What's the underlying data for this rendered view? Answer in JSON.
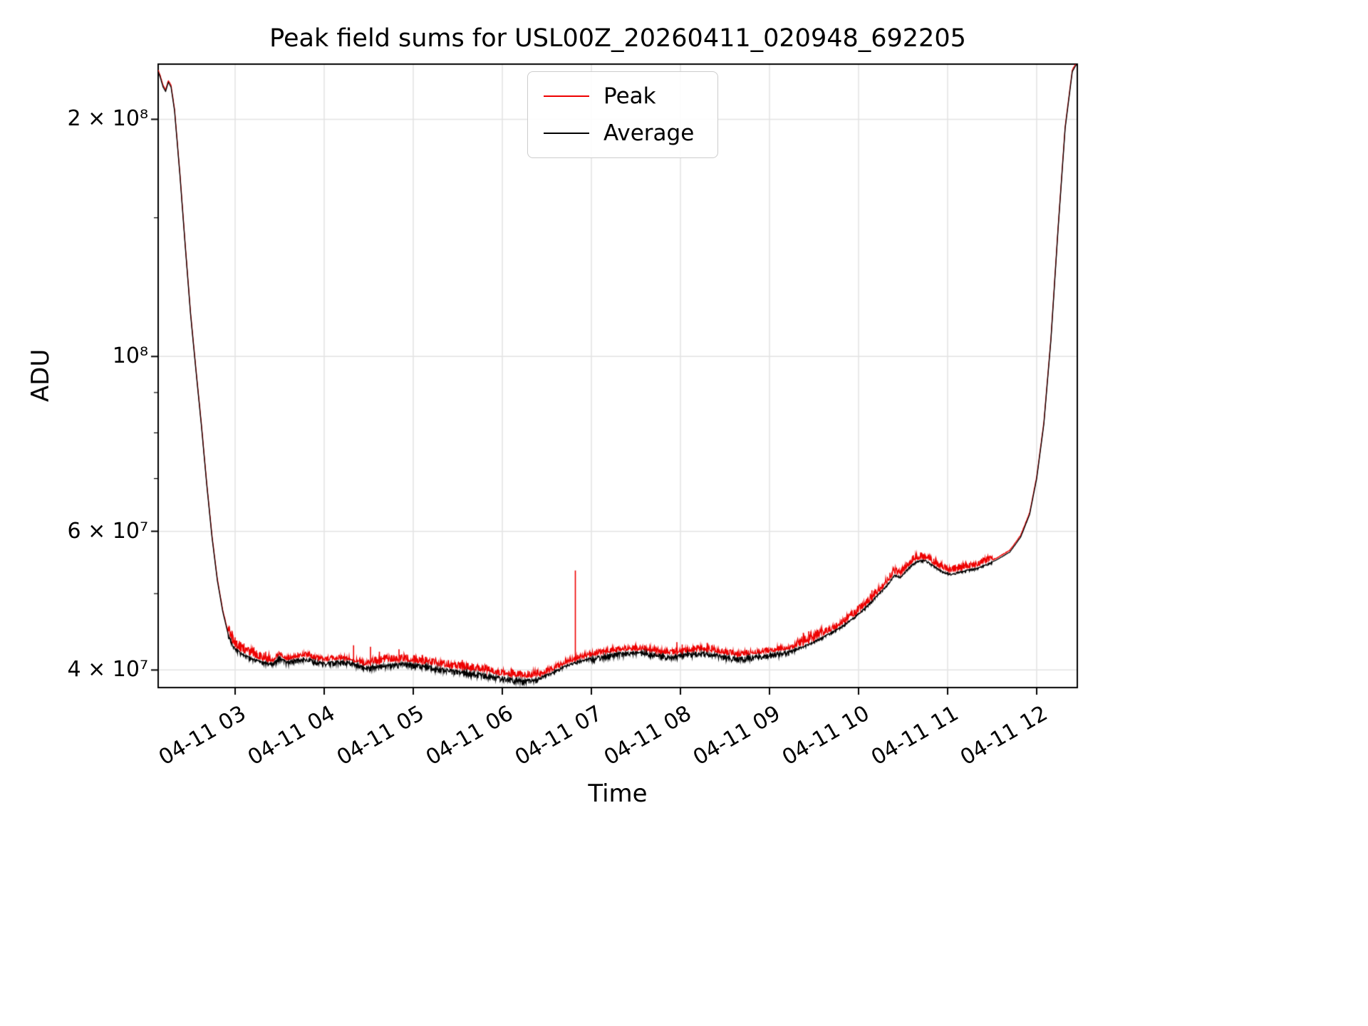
{
  "figure": {
    "title": "Peak field sums for USL00Z_20260411_020948_692205",
    "xlabel": "Time",
    "ylabel": "ADU"
  },
  "legend": {
    "position": "upper center",
    "items": [
      {
        "label": "Peak",
        "color": "#ee0000"
      },
      {
        "label": "Average",
        "color": "#000000"
      }
    ]
  },
  "chart_data": {
    "type": "line",
    "title": "Peak field sums for USL00Z_20260411_020948_692205",
    "xlabel": "Time",
    "ylabel": "ADU",
    "yscale": "log",
    "grid": true,
    "x_unit": "hours of day on 2026-04-11",
    "xlim": [
      2.136,
      12.456
    ],
    "ylim": [
      38000000.0,
      235000000.0
    ],
    "xticks": [
      3,
      4,
      5,
      6,
      7,
      8,
      9,
      10,
      11,
      12
    ],
    "xticklabels": [
      "04-11 03",
      "04-11 04",
      "04-11 05",
      "04-11 06",
      "04-11 07",
      "04-11 08",
      "04-11 09",
      "04-11 10",
      "04-11 11",
      "04-11 12"
    ],
    "yticks": [
      40000000.0,
      60000000.0,
      100000000.0,
      200000000.0
    ],
    "yticklabels": [
      "4 × 10⁷",
      "6 × 10⁷",
      "10⁸",
      "2 × 10⁸"
    ],
    "yticks_minor": [
      50000000.0,
      70000000.0,
      80000000.0,
      90000000.0,
      150000000.0
    ],
    "series": [
      {
        "name": "Peak",
        "color": "#ee0000",
        "noise": "above baseline"
      },
      {
        "name": "Average",
        "color": "#000000",
        "noise": "below baseline"
      }
    ],
    "peak_bias": 0.004,
    "baseline_keypoints": [
      [
        2.136,
        230000000.0
      ],
      [
        2.16,
        226000000.0
      ],
      [
        2.19,
        220000000.0
      ],
      [
        2.22,
        217000000.0
      ],
      [
        2.25,
        223000000.0
      ],
      [
        2.28,
        220000000.0
      ],
      [
        2.32,
        205000000.0
      ],
      [
        2.38,
        170000000.0
      ],
      [
        2.44,
        138000000.0
      ],
      [
        2.5,
        113000000.0
      ],
      [
        2.56,
        96000000.0
      ],
      [
        2.62,
        82000000.0
      ],
      [
        2.68,
        69000000.0
      ],
      [
        2.74,
        59000000.0
      ],
      [
        2.8,
        52000000.0
      ],
      [
        2.86,
        47500000.0
      ],
      [
        2.92,
        44500000.0
      ],
      [
        2.98,
        43000000.0
      ],
      [
        3.05,
        42200000.0
      ],
      [
        3.15,
        41600000.0
      ],
      [
        3.3,
        41000000.0
      ],
      [
        3.42,
        40800000.0
      ],
      [
        3.5,
        41600000.0
      ],
      [
        3.58,
        41000000.0
      ],
      [
        3.68,
        41300000.0
      ],
      [
        3.8,
        41500000.0
      ],
      [
        3.9,
        41100000.0
      ],
      [
        4.0,
        40900000.0
      ],
      [
        4.15,
        41100000.0
      ],
      [
        4.3,
        41000000.0
      ],
      [
        4.45,
        40400000.0
      ],
      [
        4.6,
        40600000.0
      ],
      [
        4.75,
        40800000.0
      ],
      [
        4.9,
        40900000.0
      ],
      [
        5.05,
        40700000.0
      ],
      [
        5.2,
        40500000.0
      ],
      [
        5.35,
        40200000.0
      ],
      [
        5.5,
        40000000.0
      ],
      [
        5.65,
        39800000.0
      ],
      [
        5.8,
        39600000.0
      ],
      [
        5.95,
        39300000.0
      ],
      [
        6.1,
        39100000.0
      ],
      [
        6.25,
        38900000.0
      ],
      [
        6.4,
        39100000.0
      ],
      [
        6.55,
        39700000.0
      ],
      [
        6.7,
        40500000.0
      ],
      [
        6.85,
        41100000.0
      ],
      [
        7.0,
        41500000.0
      ],
      [
        7.15,
        41800000.0
      ],
      [
        7.3,
        42100000.0
      ],
      [
        7.45,
        42200000.0
      ],
      [
        7.6,
        42200000.0
      ],
      [
        7.75,
        41900000.0
      ],
      [
        7.9,
        41700000.0
      ],
      [
        8.05,
        42000000.0
      ],
      [
        8.2,
        42200000.0
      ],
      [
        8.35,
        42100000.0
      ],
      [
        8.5,
        41700000.0
      ],
      [
        8.65,
        41500000.0
      ],
      [
        8.8,
        41700000.0
      ],
      [
        8.95,
        41900000.0
      ],
      [
        9.1,
        42100000.0
      ],
      [
        9.25,
        42400000.0
      ],
      [
        9.4,
        43000000.0
      ],
      [
        9.55,
        43800000.0
      ],
      [
        9.7,
        44700000.0
      ],
      [
        9.85,
        45800000.0
      ],
      [
        10.0,
        47200000.0
      ],
      [
        10.1,
        48300000.0
      ],
      [
        10.2,
        49700000.0
      ],
      [
        10.3,
        51000000.0
      ],
      [
        10.4,
        52800000.0
      ],
      [
        10.48,
        52600000.0
      ],
      [
        10.56,
        54000000.0
      ],
      [
        10.65,
        55000000.0
      ],
      [
        10.75,
        55200000.0
      ],
      [
        10.85,
        54200000.0
      ],
      [
        10.95,
        53300000.0
      ],
      [
        11.05,
        53000000.0
      ],
      [
        11.15,
        53400000.0
      ],
      [
        11.25,
        53700000.0
      ],
      [
        11.35,
        54000000.0
      ],
      [
        11.45,
        54600000.0
      ],
      [
        11.55,
        55200000.0
      ],
      [
        11.7,
        56500000.0
      ],
      [
        11.82,
        59000000.0
      ],
      [
        11.92,
        63000000.0
      ],
      [
        12.0,
        70000000.0
      ],
      [
        12.08,
        82000000.0
      ],
      [
        12.16,
        105000000.0
      ],
      [
        12.24,
        145000000.0
      ],
      [
        12.32,
        195000000.0
      ],
      [
        12.4,
        230000000.0
      ],
      [
        12.456,
        236000000.0
      ]
    ],
    "noise_regions": [
      {
        "t0": 2.92,
        "t1": 3.4,
        "peak": 0.03,
        "avg": 0.01
      },
      {
        "t0": 3.4,
        "t1": 4.5,
        "peak": 0.014,
        "avg": 0.013
      },
      {
        "t0": 4.5,
        "t1": 6.4,
        "peak": 0.022,
        "avg": 0.016
      },
      {
        "t0": 6.4,
        "t1": 7.0,
        "peak": 0.015,
        "avg": 0.008
      },
      {
        "t0": 7.0,
        "t1": 9.3,
        "peak": 0.016,
        "avg": 0.015
      },
      {
        "t0": 9.3,
        "t1": 9.6,
        "peak": 0.026,
        "avg": 0.007
      },
      {
        "t0": 9.6,
        "t1": 11.5,
        "peak": 0.02,
        "avg": 0.006
      }
    ],
    "peak_spikes": [
      [
        2.97,
        44500000.0
      ],
      [
        3.0,
        44000000.0
      ],
      [
        3.02,
        43600000.0
      ],
      [
        4.33,
        43000000.0
      ],
      [
        4.52,
        42800000.0
      ],
      [
        4.62,
        42200000.0
      ],
      [
        4.84,
        42500000.0
      ],
      [
        5.1,
        41800000.0
      ],
      [
        5.55,
        41200000.0
      ],
      [
        6.1,
        40200000.0
      ],
      [
        6.82,
        53500000.0
      ],
      [
        7.96,
        43400000.0
      ],
      [
        8.02,
        43100000.0
      ],
      [
        8.3,
        43300000.0
      ],
      [
        8.35,
        43000000.0
      ],
      [
        9.38,
        44600000.0
      ],
      [
        9.44,
        44800000.0
      ],
      [
        9.5,
        44500000.0
      ],
      [
        10.15,
        50500000.0
      ]
    ]
  }
}
